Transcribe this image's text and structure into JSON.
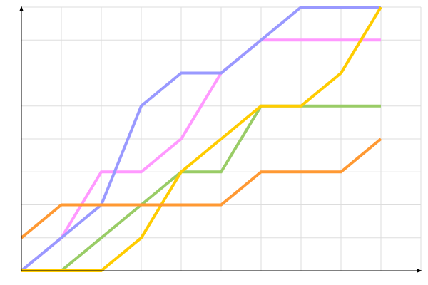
{
  "chart_data": {
    "type": "line",
    "title": "",
    "xlabel": "",
    "ylabel": "",
    "x": [
      0,
      1,
      2,
      3,
      4,
      5,
      6,
      7,
      8,
      9
    ],
    "xlim": [
      0,
      10
    ],
    "ylim": [
      0,
      8
    ],
    "grid": true,
    "legend": "none",
    "series": [
      {
        "color": "#ff99ff",
        "values": [
          0,
          1,
          3,
          3,
          4,
          6,
          7,
          7,
          7,
          7
        ]
      },
      {
        "color": "#9999ff",
        "values": [
          0,
          1,
          2,
          5,
          6,
          6,
          7,
          8,
          8,
          8
        ]
      },
      {
        "color": "#99cc66",
        "values": [
          0,
          0,
          1,
          2,
          3,
          3,
          5,
          5,
          5,
          5
        ]
      },
      {
        "color": "#ffcc00",
        "values": [
          0,
          0,
          0,
          1,
          3,
          4,
          5,
          5,
          6,
          8
        ]
      },
      {
        "color": "#ff9933",
        "values": [
          1,
          2,
          2,
          2,
          2,
          2,
          3,
          3,
          3,
          4
        ]
      }
    ]
  }
}
